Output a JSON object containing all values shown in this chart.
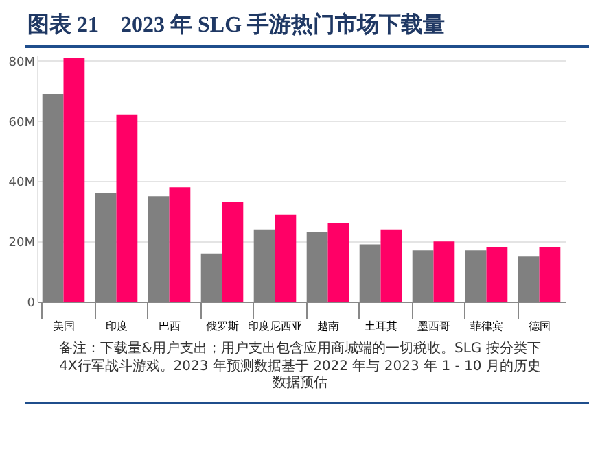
{
  "chart_data": {
    "type": "bar",
    "title": "图表 21　2023 年 SLG 手游热门市场下载量",
    "categories": [
      "美国",
      "印度",
      "巴西",
      "俄罗斯",
      "印度尼西亚",
      "越南",
      "土耳其",
      "墨西哥",
      "菲律宾",
      "德国"
    ],
    "series": [
      {
        "color": "#808080",
        "values": [
          69,
          36,
          35,
          16,
          24,
          23,
          19,
          17,
          17,
          15
        ]
      },
      {
        "color": "#ff0066",
        "values": [
          81,
          62,
          38,
          33,
          29,
          26,
          24,
          20,
          18,
          18
        ]
      }
    ],
    "ylim": [
      0,
      82
    ],
    "yticks": [
      0,
      {
        "value": 20,
        "label": "20M"
      },
      {
        "value": 40,
        "label": "40M"
      },
      {
        "value": 60,
        "label": "60M"
      },
      {
        "value": 80,
        "label": "80M"
      }
    ],
    "grid": "y",
    "legend": false,
    "annotations": [
      "备注：下载量&用户支出；用户支出包含应用商城端的一切税收。SLG 按分类下4X行军战斗游戏。2023 年预测数据基于 2022 年与 2023 年 1 - 10 月的历史数据预估"
    ]
  }
}
